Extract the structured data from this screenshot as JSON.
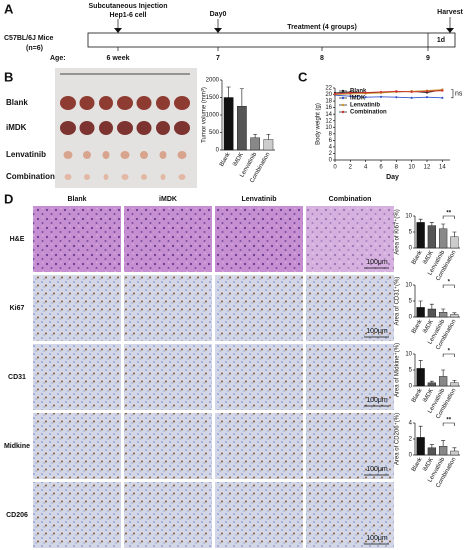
{
  "panels": [
    "A",
    "B",
    "C",
    "D"
  ],
  "timeline": {
    "subject": "C57BL/6J Mice",
    "n": "(n=6)",
    "injection": [
      "Subcutaneous Injection",
      "Hep1-6 cell"
    ],
    "day0": "Day0",
    "treatment": "Treatment (4 groups)",
    "harvest": "Harvest",
    "age_label": "Age:",
    "ages": [
      "6 week",
      "7",
      "8",
      "9"
    ],
    "duration": "1d"
  },
  "photo": {
    "rows": [
      "Blank",
      "iMDK",
      "Lenvatinib",
      "Combination"
    ]
  },
  "histology": {
    "columns": [
      "Blank",
      "iMDK",
      "Lenvatinib",
      "Combination"
    ],
    "rows": [
      "H&E",
      "Ki67",
      "CD31",
      "Midkine",
      "CD206"
    ],
    "scale_bar": "100μm"
  },
  "chart_data": [
    {
      "type": "bar",
      "y_label": "Tumor volume (mm³)",
      "categories": [
        "Blank",
        "iMDK",
        "Lenvatinib",
        "Combination"
      ],
      "values": [
        1500,
        1250,
        350,
        300
      ],
      "errors": [
        300,
        500,
        100,
        150
      ],
      "colors": [
        "#111111",
        "#555555",
        "#888888",
        "#cccccc"
      ],
      "ylim": [
        0,
        2000
      ],
      "yticks": [
        0,
        500,
        1000,
        1500,
        2000
      ]
    },
    {
      "type": "line",
      "x_label": "Day",
      "y_label": "Body weight (g)",
      "x": [
        0,
        2,
        4,
        6,
        8,
        10,
        12,
        14
      ],
      "xlim": [
        0,
        15
      ],
      "xticks": [
        0,
        2,
        4,
        6,
        8,
        10,
        12,
        14
      ],
      "ylim": [
        0,
        22
      ],
      "yticks": [
        0,
        2,
        4,
        6,
        8,
        10,
        12,
        14,
        16,
        18,
        20,
        22
      ],
      "annotation": "ns",
      "legend": "top-left",
      "series": [
        {
          "name": "Blank",
          "color": "#222222",
          "values": [
            20.5,
            20.8,
            20.5,
            20.6,
            20.8,
            21,
            20.6,
            21.5
          ]
        },
        {
          "name": "iMDK",
          "color": "#3355cc",
          "values": [
            19.8,
            19.5,
            19.2,
            19.3,
            19.2,
            19,
            19.2,
            19
          ]
        },
        {
          "name": "Lenvatinib",
          "color": "#c8962a",
          "values": [
            20,
            20.2,
            20.3,
            20.5,
            20.8,
            21,
            21.2,
            21.5
          ]
        },
        {
          "name": "Combination",
          "color": "#d03030",
          "values": [
            20.2,
            20.5,
            20.6,
            20.8,
            21,
            20.8,
            21,
            21.2
          ]
        }
      ]
    },
    {
      "type": "bar",
      "y_label": "Area of Ki67⁺(%)",
      "categories": [
        "Blank",
        "iMDK",
        "Lenvatinib",
        "Combination"
      ],
      "values": [
        8,
        7,
        6,
        3.5
      ],
      "errors": [
        1,
        1,
        1.5,
        1.5
      ],
      "colors": [
        "#111111",
        "#555555",
        "#888888",
        "#cccccc"
      ],
      "ylim": [
        0,
        10
      ],
      "yticks": [
        0,
        5,
        10
      ],
      "annotation": "**"
    },
    {
      "type": "bar",
      "y_label": "Area of CD31⁺(%)",
      "categories": [
        "Blank",
        "iMDK",
        "Lenvatinib",
        "Combination"
      ],
      "values": [
        3,
        2.5,
        1.5,
        0.8
      ],
      "errors": [
        2,
        1.5,
        1,
        0.5
      ],
      "colors": [
        "#111111",
        "#555555",
        "#888888",
        "#cccccc"
      ],
      "ylim": [
        0,
        10
      ],
      "yticks": [
        0,
        5,
        10
      ],
      "annotation": "*"
    },
    {
      "type": "bar",
      "y_label": "Area of Midkine⁺(%)",
      "categories": [
        "Blank",
        "iMDK",
        "Lenvatinib",
        "Combination"
      ],
      "values": [
        5.5,
        1,
        3,
        1
      ],
      "errors": [
        2.5,
        0.5,
        2,
        0.8
      ],
      "colors": [
        "#111111",
        "#555555",
        "#888888",
        "#cccccc"
      ],
      "ylim": [
        0,
        10
      ],
      "yticks": [
        0,
        5,
        10
      ],
      "annotation": "*"
    },
    {
      "type": "bar",
      "y_label": "Area of CD206⁺(%)",
      "categories": [
        "Blank",
        "iMDK",
        "Lenvatinib",
        "Combination"
      ],
      "values": [
        2.2,
        0.9,
        1.1,
        0.5
      ],
      "errors": [
        1.4,
        0.4,
        0.7,
        0.4
      ],
      "colors": [
        "#111111",
        "#555555",
        "#888888",
        "#cccccc"
      ],
      "ylim": [
        0,
        4
      ],
      "yticks": [
        0,
        2,
        4
      ],
      "annotation": "**"
    }
  ]
}
